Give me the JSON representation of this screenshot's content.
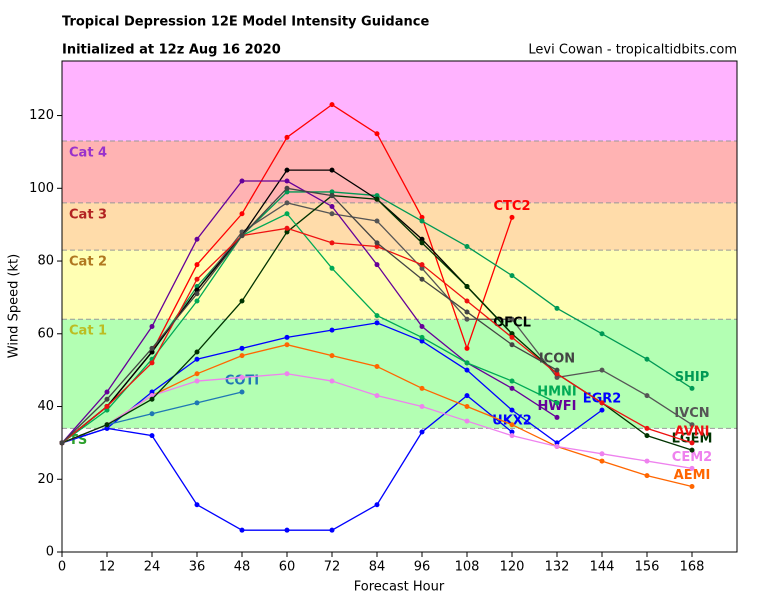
{
  "chart_data": {
    "type": "line",
    "title": "Tropical Depression 12E Model Intensity Guidance",
    "subtitle": "Initialized at 12z Aug 16 2020",
    "credit": "Levi Cowan - tropicaltidbits.com",
    "x_label": "Forecast Hour",
    "y_label": "Wind Speed (kt)",
    "xlim": [
      0,
      180
    ],
    "ylim": [
      0,
      135
    ],
    "xticks": [
      0,
      12,
      24,
      36,
      48,
      60,
      72,
      84,
      96,
      108,
      120,
      132,
      144,
      156,
      168
    ],
    "yticks": [
      0,
      20,
      40,
      60,
      80,
      100,
      120
    ],
    "bands": [
      {
        "name": "TS",
        "from": 34,
        "to": 64,
        "color": "#b3ffb3",
        "label_color": "#2ca02c"
      },
      {
        "name": "Cat 1",
        "from": 64,
        "to": 83,
        "color": "#ffffb3",
        "label_color": "#bcbd22"
      },
      {
        "name": "Cat 2",
        "from": 83,
        "to": 96,
        "color": "#ffdcaa",
        "label_color": "#b07820"
      },
      {
        "name": "Cat 3",
        "from": 96,
        "to": 113,
        "color": "#ffb3b3",
        "label_color": "#b22222"
      },
      {
        "name": "Cat 4",
        "from": 113,
        "to": 135,
        "color": "#ffb3ff",
        "label_color": "#9932cc"
      }
    ],
    "x": [
      0,
      12,
      24,
      36,
      48,
      60,
      72,
      84,
      96,
      108,
      120,
      132,
      144,
      156,
      168
    ],
    "series": [
      {
        "name": "CTC2",
        "color": "#ff0000",
        "values": [
          30,
          40,
          55,
          79,
          93,
          114,
          123,
          115,
          92,
          56,
          92,
          null,
          null,
          null,
          null
        ]
      },
      {
        "name": "UKX2",
        "color": "#0000ff",
        "values": [
          30,
          34,
          32,
          13,
          6,
          6,
          6,
          13,
          33,
          43,
          33,
          null,
          null,
          null,
          null
        ]
      },
      {
        "name": "EGR2",
        "color": "#0000ff",
        "values": [
          30,
          34,
          44,
          53,
          56,
          59,
          61,
          63,
          58,
          50,
          39,
          30,
          39,
          null,
          null
        ]
      },
      {
        "name": "COTI",
        "color": "#1f77b4",
        "values": [
          30,
          35,
          38,
          41,
          44,
          null,
          null,
          null,
          null,
          null,
          null,
          null,
          null,
          null,
          null
        ]
      },
      {
        "name": "AEMI",
        "color": "#ff6600",
        "values": [
          30,
          35,
          43,
          49,
          54,
          57,
          54,
          51,
          45,
          40,
          35,
          29,
          25,
          21,
          18
        ]
      },
      {
        "name": "CEM2",
        "color": "#ee82ee",
        "values": [
          30,
          35,
          43,
          47,
          48,
          49,
          47,
          43,
          40,
          36,
          32,
          29,
          27,
          25,
          23
        ]
      },
      {
        "name": "SHIP",
        "color": "#009955",
        "values": [
          30,
          40,
          55,
          73,
          87,
          99,
          99,
          98,
          91,
          84,
          76,
          67,
          60,
          53,
          45
        ]
      },
      {
        "name": "IVCN",
        "color": "#555555",
        "values": [
          30,
          40,
          55,
          72,
          88,
          96,
          93,
          91,
          78,
          64,
          64,
          48,
          50,
          43,
          35
        ]
      },
      {
        "name": "OFCL",
        "color": "#000000",
        "values": [
          30,
          40,
          55,
          72,
          87,
          105,
          105,
          97,
          86,
          73,
          60,
          null,
          null,
          null,
          null
        ]
      },
      {
        "name": "LGEM",
        "color": "#003300",
        "values": [
          30,
          35,
          42,
          55,
          69,
          88,
          98,
          97,
          85,
          73,
          60,
          49,
          41,
          32,
          28
        ]
      },
      {
        "name": "HWFI",
        "color": "#660099",
        "values": [
          30,
          44,
          62,
          86,
          102,
          102,
          95,
          79,
          62,
          52,
          45,
          37,
          null,
          null,
          null
        ]
      },
      {
        "name": "HMNI",
        "color": "#00aa55",
        "values": [
          30,
          39,
          53,
          69,
          87,
          93,
          78,
          65,
          59,
          52,
          47,
          41,
          null,
          null,
          null
        ]
      },
      {
        "name": "AVNI",
        "color": "#ee1111",
        "values": [
          30,
          40,
          52,
          75,
          87,
          89,
          85,
          84,
          79,
          69,
          59,
          49,
          41,
          34,
          30
        ]
      },
      {
        "name": "ICON",
        "color": "#444444",
        "values": [
          30,
          42,
          56,
          71,
          87,
          100,
          98,
          85,
          75,
          66,
          57,
          50,
          null,
          null,
          null
        ]
      }
    ]
  }
}
